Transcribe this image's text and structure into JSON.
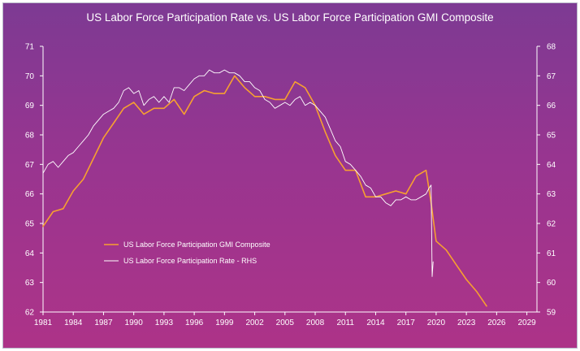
{
  "chart_data": {
    "type": "line",
    "title": "US Labor Force Participation Rate vs. US Labor Force Participation GMI Composite",
    "xlabel": "",
    "ylabel": "",
    "x_ticks": [
      "1981",
      "1984",
      "1987",
      "1990",
      "1993",
      "1996",
      "1999",
      "2002",
      "2005",
      "2008",
      "2011",
      "2014",
      "2017",
      "2020",
      "2023",
      "2026",
      "2029"
    ],
    "xlim": [
      1981,
      2030
    ],
    "left_axis": {
      "ylim": [
        62,
        71
      ],
      "ticks": [
        "62",
        "63",
        "64",
        "65",
        "66",
        "67",
        "68",
        "69",
        "70",
        "71"
      ]
    },
    "right_axis": {
      "ylim": [
        59,
        68
      ],
      "ticks": [
        "59",
        "60",
        "61",
        "62",
        "63",
        "64",
        "65",
        "66",
        "67",
        "68"
      ]
    },
    "legend_position": "lower-left",
    "series": [
      {
        "name": "US Labor Force Participation GMI Composite",
        "axis": "left",
        "color": "#f7a030",
        "x": [
          1981.0,
          1982.0,
          1983.0,
          1984.0,
          1985.0,
          1986.0,
          1987.0,
          1988.0,
          1989.0,
          1990.0,
          1991.0,
          1992.0,
          1993.0,
          1994.0,
          1995.0,
          1996.0,
          1997.0,
          1998.0,
          1999.0,
          2000.0,
          2001.0,
          2002.0,
          2003.0,
          2004.0,
          2005.0,
          2006.0,
          2007.0,
          2008.0,
          2009.0,
          2010.0,
          2011.0,
          2012.0,
          2013.0,
          2014.0,
          2015.0,
          2016.0,
          2017.0,
          2018.0,
          2019.0,
          2019.5,
          2020.0,
          2021.0,
          2022.0,
          2023.0,
          2024.0,
          2025.0
        ],
        "y": [
          64.9,
          65.4,
          65.5,
          66.1,
          66.5,
          67.2,
          67.9,
          68.4,
          68.9,
          69.1,
          68.7,
          68.9,
          68.9,
          69.2,
          68.7,
          69.3,
          69.5,
          69.4,
          69.4,
          70.0,
          69.6,
          69.3,
          69.3,
          69.2,
          69.2,
          69.8,
          69.6,
          69.0,
          68.1,
          67.3,
          66.8,
          66.8,
          65.9,
          65.9,
          66.0,
          66.1,
          66.0,
          66.6,
          66.8,
          65.7,
          64.4,
          64.1,
          63.6,
          63.1,
          62.7,
          62.2
        ]
      },
      {
        "name": "US Labor Force Participation Rate - RHS",
        "axis": "right",
        "color": "#ffffff",
        "x": [
          1981.0,
          1981.5,
          1982.0,
          1982.5,
          1983.0,
          1983.5,
          1984.0,
          1984.5,
          1985.0,
          1985.5,
          1986.0,
          1986.5,
          1987.0,
          1987.5,
          1988.0,
          1988.5,
          1989.0,
          1989.5,
          1990.0,
          1990.5,
          1991.0,
          1991.5,
          1992.0,
          1992.5,
          1993.0,
          1993.5,
          1994.0,
          1994.5,
          1995.0,
          1995.5,
          1996.0,
          1996.5,
          1997.0,
          1997.5,
          1998.0,
          1998.5,
          1999.0,
          1999.5,
          2000.0,
          2000.5,
          2001.0,
          2001.5,
          2002.0,
          2002.5,
          2003.0,
          2003.5,
          2004.0,
          2004.5,
          2005.0,
          2005.5,
          2006.0,
          2006.5,
          2007.0,
          2007.5,
          2008.0,
          2008.5,
          2009.0,
          2009.5,
          2010.0,
          2010.5,
          2011.0,
          2011.5,
          2012.0,
          2012.5,
          2013.0,
          2013.5,
          2014.0,
          2014.5,
          2015.0,
          2015.5,
          2016.0,
          2016.5,
          2017.0,
          2017.5,
          2018.0,
          2018.5,
          2019.0,
          2019.3,
          2019.5,
          2019.6,
          2019.7
        ],
        "y": [
          63.7,
          64.0,
          64.1,
          63.9,
          64.1,
          64.3,
          64.4,
          64.6,
          64.8,
          65.0,
          65.3,
          65.5,
          65.7,
          65.8,
          65.9,
          66.1,
          66.5,
          66.6,
          66.4,
          66.5,
          66.0,
          66.2,
          66.3,
          66.1,
          66.3,
          66.1,
          66.6,
          66.6,
          66.5,
          66.7,
          66.9,
          67.0,
          67.0,
          67.2,
          67.1,
          67.1,
          67.2,
          67.1,
          67.1,
          67.0,
          66.8,
          66.8,
          66.6,
          66.5,
          66.2,
          66.1,
          65.9,
          66.0,
          66.1,
          66.0,
          66.2,
          66.3,
          66.0,
          66.1,
          66.0,
          65.8,
          65.6,
          65.2,
          64.8,
          64.6,
          64.1,
          64.0,
          63.8,
          63.6,
          63.3,
          63.2,
          62.9,
          62.9,
          62.7,
          62.6,
          62.8,
          62.8,
          62.9,
          62.8,
          62.8,
          62.9,
          63.0,
          63.2,
          63.3,
          60.2,
          60.7
        ]
      }
    ]
  }
}
